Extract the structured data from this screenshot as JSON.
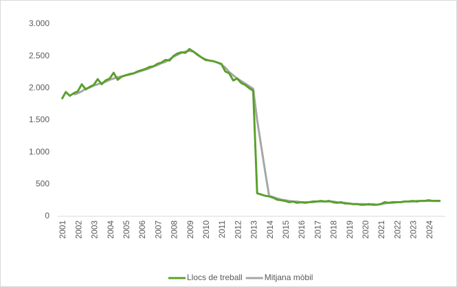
{
  "chart_data": {
    "type": "line",
    "categories": [
      "2001",
      null,
      null,
      null,
      "2002",
      null,
      null,
      null,
      "2003",
      null,
      null,
      null,
      "2004",
      null,
      null,
      null,
      "2005",
      null,
      null,
      null,
      "2006",
      null,
      null,
      null,
      "2007",
      null,
      null,
      null,
      "2008",
      null,
      null,
      null,
      "2009",
      null,
      null,
      null,
      "2010",
      null,
      null,
      null,
      "2011",
      null,
      null,
      null,
      "2012",
      null,
      null,
      null,
      "2013",
      null,
      null,
      null,
      "2014",
      null,
      null,
      null,
      "2015",
      null,
      null,
      null,
      "2016",
      null,
      null,
      null,
      "2017",
      null,
      null,
      null,
      "2018",
      null,
      null,
      null,
      "2019",
      null,
      null,
      null,
      "2020",
      null,
      null,
      null,
      "2021",
      null,
      null,
      null,
      "2022",
      null,
      null,
      null,
      "2023",
      null,
      null,
      null,
      "2024",
      null,
      null,
      null
    ],
    "series": [
      {
        "name": "Llocs de treball",
        "color": "#5aa02c",
        "values": [
          1830,
          1940,
          1880,
          1920,
          1950,
          2060,
          1980,
          2020,
          2050,
          2140,
          2060,
          2120,
          2150,
          2240,
          2130,
          2180,
          2200,
          2220,
          2230,
          2260,
          2280,
          2300,
          2330,
          2340,
          2380,
          2400,
          2440,
          2430,
          2500,
          2540,
          2560,
          2550,
          2610,
          2570,
          2520,
          2480,
          2440,
          2430,
          2420,
          2400,
          2380,
          2260,
          2230,
          2120,
          2150,
          2080,
          2050,
          2000,
          1960,
          360,
          340,
          320,
          310,
          290,
          260,
          250,
          240,
          220,
          230,
          210,
          220,
          210,
          220,
          230,
          230,
          240,
          230,
          240,
          220,
          210,
          220,
          200,
          200,
          190,
          190,
          180,
          180,
          190,
          180,
          180,
          190,
          220,
          210,
          220,
          220,
          220,
          230,
          230,
          240,
          230,
          240,
          240,
          250,
          240,
          240,
          240
        ]
      },
      {
        "name": "Mitjana mòbil",
        "color": "#a6a6a6",
        "values": [
          null,
          null,
          null,
          1900,
          1920,
          1950,
          1990,
          2010,
          2040,
          2060,
          2080,
          2100,
          2130,
          2150,
          2170,
          2180,
          2200,
          2210,
          2230,
          2250,
          2270,
          2290,
          2310,
          2340,
          2360,
          2390,
          2410,
          2450,
          2490,
          2520,
          2550,
          2570,
          2580,
          2570,
          2530,
          2480,
          2450,
          2430,
          2420,
          2400,
          2370,
          2320,
          2250,
          2200,
          2150,
          2110,
          2070,
          2030,
          1990,
          1500,
          1100,
          700,
          320,
          300,
          280,
          260,
          250,
          240,
          230,
          230,
          220,
          220,
          220,
          220,
          230,
          230,
          230,
          230,
          230,
          220,
          210,
          210,
          200,
          190,
          190,
          190,
          190,
          180,
          190,
          180,
          190,
          200,
          210,
          210,
          220,
          220,
          230,
          230,
          230,
          240,
          240,
          240,
          240,
          240,
          240,
          240
        ]
      }
    ],
    "ylim": [
      0,
      3000
    ],
    "yticks": [
      0,
      500,
      {
        "value": 1000,
        "label": "1.000"
      },
      {
        "value": 1500,
        "label": "1.500"
      },
      {
        "value": 2000,
        "label": "2.000"
      },
      {
        "value": 2500,
        "label": "2.500"
      },
      {
        "value": 3000,
        "label": "3.000"
      }
    ],
    "grid": false,
    "legend": "bottom"
  }
}
